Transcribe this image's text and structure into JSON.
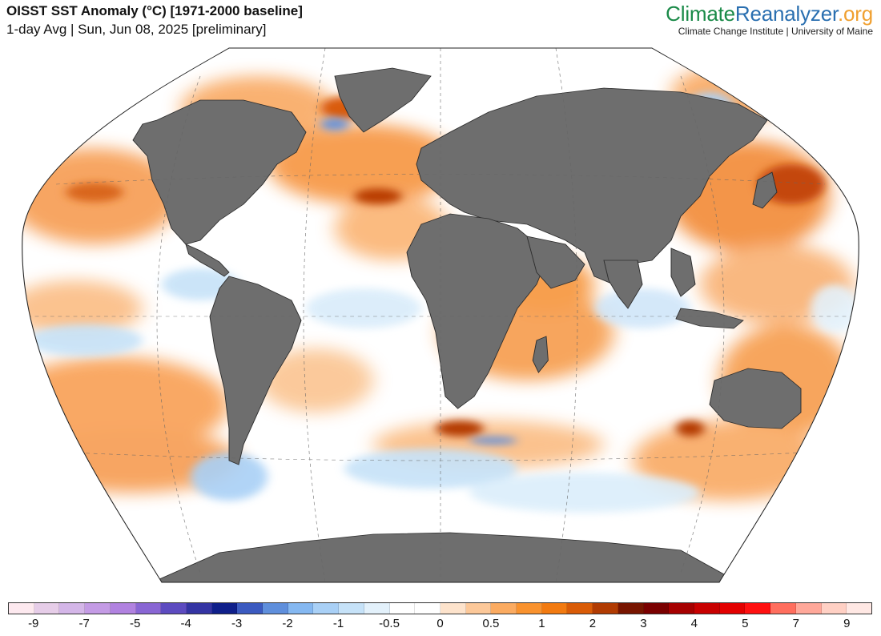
{
  "header": {
    "title": "OISST SST Anomaly (°C) [1971-2000 baseline]",
    "subtitle": "1-day Avg | Sun, Jun 08, 2025 [preliminary]"
  },
  "brand": {
    "name_part1": "Climate",
    "name_part2": "Reanalyzer",
    "name_part3": ".org",
    "tagline": "Climate Change Institute | University of Maine"
  },
  "map": {
    "projection": "Winkel Tripel (global)",
    "land_color": "#6e6e6e",
    "ocean_neutral": "#ffffff",
    "warm_color": "#f47c1f",
    "hot_color": "#a33300",
    "cool_color": "#a9d2f5",
    "cold_color": "#4f7ad8"
  },
  "colorbar": {
    "colors": [
      "#fde9ef",
      "#e6cde8",
      "#d4b6e8",
      "#c49be5",
      "#b182e0",
      "#8966d4",
      "#5d4bc0",
      "#3434a3",
      "#0f1f8a",
      "#3b5ac0",
      "#5f8fdc",
      "#85b8f1",
      "#a9d0f6",
      "#c6e2f8",
      "#e3f1fb",
      "#ffffff",
      "#ffffff",
      "#fde3cc",
      "#fcc899",
      "#fbab61",
      "#f9922e",
      "#f27a10",
      "#d95b07",
      "#b13b02",
      "#781500",
      "#7a0000",
      "#a60000",
      "#c80000",
      "#e30000",
      "#ff1010",
      "#ff6e5e",
      "#ffa89a",
      "#ffd0c4",
      "#ffe8e4"
    ],
    "tick_labels": [
      "-9",
      "-7",
      "-5",
      "-4",
      "-3",
      "-2",
      "-1",
      "-0.5",
      "0",
      "0.5",
      "1",
      "2",
      "3",
      "4",
      "5",
      "7",
      "9"
    ]
  }
}
